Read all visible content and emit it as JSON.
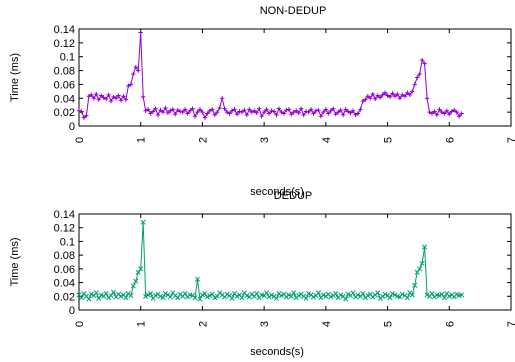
{
  "chart_data": [
    {
      "type": "line",
      "title": "NON-DEDUP",
      "xlabel": "seconds(s)",
      "ylabel": "Time (ms)",
      "xlim": [
        0,
        7
      ],
      "ylim": [
        0,
        0.14
      ],
      "xticks": [
        "0",
        "1",
        "2",
        "3",
        "4",
        "5",
        "6",
        "7"
      ],
      "yticks": [
        "0",
        "0.02",
        "0.04",
        "0.06",
        "0.08",
        "0.1",
        "0.12",
        "0.14"
      ],
      "grid": false,
      "color": "#9400d3",
      "marker": "plus",
      "series": [
        {
          "x": [
            0.0,
            0.04,
            0.08,
            0.12,
            0.16,
            0.2,
            0.24,
            0.28,
            0.32,
            0.36,
            0.4,
            0.44,
            0.48,
            0.52,
            0.56,
            0.6,
            0.64,
            0.68,
            0.72,
            0.76,
            0.8,
            0.84,
            0.88,
            0.92,
            0.96,
            1.0,
            1.04,
            1.08,
            1.12,
            1.16,
            1.2,
            1.24,
            1.28,
            1.32,
            1.36,
            1.4,
            1.44,
            1.48,
            1.52,
            1.56,
            1.6,
            1.64,
            1.68,
            1.72,
            1.76,
            1.8,
            1.84,
            1.88,
            1.92,
            1.96,
            2.0,
            2.04,
            2.08,
            2.12,
            2.16,
            2.2,
            2.24,
            2.28,
            2.32,
            2.36,
            2.4,
            2.44,
            2.48,
            2.52,
            2.56,
            2.6,
            2.64,
            2.68,
            2.72,
            2.76,
            2.8,
            2.84,
            2.88,
            2.92,
            2.96,
            3.0,
            3.04,
            3.08,
            3.12,
            3.16,
            3.2,
            3.24,
            3.28,
            3.32,
            3.36,
            3.4,
            3.44,
            3.48,
            3.52,
            3.56,
            3.6,
            3.64,
            3.68,
            3.72,
            3.76,
            3.8,
            3.84,
            3.88,
            3.92,
            3.96,
            4.0,
            4.04,
            4.08,
            4.12,
            4.16,
            4.2,
            4.24,
            4.28,
            4.32,
            4.36,
            4.4,
            4.44,
            4.48,
            4.52,
            4.56,
            4.6,
            4.64,
            4.68,
            4.72,
            4.76,
            4.8,
            4.84,
            4.88,
            4.92,
            4.96,
            5.0,
            5.04,
            5.08,
            5.12,
            5.16,
            5.2,
            5.24,
            5.28,
            5.32,
            5.36,
            5.4,
            5.44,
            5.48,
            5.52,
            5.56,
            5.6,
            5.64,
            5.68,
            5.72,
            5.76,
            5.8,
            5.84,
            5.88,
            5.92,
            5.96,
            6.0,
            6.04,
            6.08,
            6.12,
            6.16,
            6.2
          ],
          "y": [
            0.022,
            0.021,
            0.012,
            0.015,
            0.043,
            0.045,
            0.04,
            0.046,
            0.038,
            0.044,
            0.041,
            0.039,
            0.045,
            0.036,
            0.042,
            0.04,
            0.044,
            0.037,
            0.043,
            0.038,
            0.058,
            0.06,
            0.075,
            0.085,
            0.08,
            0.135,
            0.042,
            0.022,
            0.024,
            0.018,
            0.021,
            0.025,
            0.016,
            0.023,
            0.02,
            0.026,
            0.019,
            0.022,
            0.024,
            0.017,
            0.023,
            0.021,
            0.02,
            0.024,
            0.018,
            0.022,
            0.025,
            0.014,
            0.02,
            0.024,
            0.02,
            0.012,
            0.018,
            0.022,
            0.024,
            0.016,
            0.02,
            0.026,
            0.04,
            0.025,
            0.02,
            0.018,
            0.022,
            0.024,
            0.017,
            0.021,
            0.02,
            0.023,
            0.016,
            0.024,
            0.02,
            0.022,
            0.019,
            0.025,
            0.014,
            0.02,
            0.024,
            0.018,
            0.022,
            0.021,
            0.016,
            0.025,
            0.02,
            0.018,
            0.023,
            0.024,
            0.017,
            0.02,
            0.022,
            0.019,
            0.025,
            0.016,
            0.021,
            0.02,
            0.024,
            0.018,
            0.022,
            0.023,
            0.014,
            0.02,
            0.024,
            0.018,
            0.022,
            0.025,
            0.017,
            0.02,
            0.023,
            0.016,
            0.024,
            0.021,
            0.019,
            0.022,
            0.016,
            0.018,
            0.024,
            0.036,
            0.038,
            0.043,
            0.04,
            0.046,
            0.039,
            0.044,
            0.041,
            0.045,
            0.048,
            0.044,
            0.042,
            0.047,
            0.043,
            0.046,
            0.04,
            0.045,
            0.043,
            0.048,
            0.045,
            0.05,
            0.06,
            0.07,
            0.075,
            0.095,
            0.09,
            0.04,
            0.02,
            0.018,
            0.021,
            0.016,
            0.024,
            0.02,
            0.018,
            0.022,
            0.017,
            0.021,
            0.023,
            0.02,
            0.014,
            0.018
          ]
        }
      ]
    },
    {
      "type": "line",
      "title": "DEDUP",
      "xlabel": "seconds(s)",
      "ylabel": "Time (ms)",
      "xlim": [
        0,
        7
      ],
      "ylim": [
        0,
        0.14
      ],
      "xticks": [
        "0",
        "1",
        "2",
        "3",
        "4",
        "5",
        "6",
        "7"
      ],
      "yticks": [
        "0",
        "0.02",
        "0.04",
        "0.06",
        "0.08",
        "0.1",
        "0.12",
        "0.14"
      ],
      "grid": false,
      "color": "#009e73",
      "marker": "cross",
      "series": [
        {
          "x": [
            0.0,
            0.04,
            0.08,
            0.12,
            0.16,
            0.2,
            0.24,
            0.28,
            0.32,
            0.36,
            0.4,
            0.44,
            0.48,
            0.52,
            0.56,
            0.6,
            0.64,
            0.68,
            0.72,
            0.76,
            0.8,
            0.84,
            0.88,
            0.92,
            0.96,
            1.0,
            1.04,
            1.08,
            1.12,
            1.16,
            1.2,
            1.24,
            1.28,
            1.32,
            1.36,
            1.4,
            1.44,
            1.48,
            1.52,
            1.56,
            1.6,
            1.64,
            1.68,
            1.72,
            1.76,
            1.8,
            1.84,
            1.88,
            1.92,
            1.96,
            2.0,
            2.04,
            2.08,
            2.12,
            2.16,
            2.2,
            2.24,
            2.28,
            2.32,
            2.36,
            2.4,
            2.44,
            2.48,
            2.52,
            2.56,
            2.6,
            2.64,
            2.68,
            2.72,
            2.76,
            2.8,
            2.84,
            2.88,
            2.92,
            2.96,
            3.0,
            3.04,
            3.08,
            3.12,
            3.16,
            3.2,
            3.24,
            3.28,
            3.32,
            3.36,
            3.4,
            3.44,
            3.48,
            3.52,
            3.56,
            3.6,
            3.64,
            3.68,
            3.72,
            3.76,
            3.8,
            3.84,
            3.88,
            3.92,
            3.96,
            4.0,
            4.04,
            4.08,
            4.12,
            4.16,
            4.2,
            4.24,
            4.28,
            4.32,
            4.36,
            4.4,
            4.44,
            4.48,
            4.52,
            4.56,
            4.6,
            4.64,
            4.68,
            4.72,
            4.76,
            4.8,
            4.84,
            4.88,
            4.92,
            4.96,
            5.0,
            5.04,
            5.08,
            5.12,
            5.16,
            5.2,
            5.24,
            5.28,
            5.32,
            5.36,
            5.4,
            5.44,
            5.48,
            5.52,
            5.56,
            5.6,
            5.64,
            5.68,
            5.72,
            5.76,
            5.8,
            5.84,
            5.88,
            5.92,
            5.96,
            6.0,
            6.04,
            6.08,
            6.12,
            6.16,
            6.2
          ],
          "y": [
            0.022,
            0.018,
            0.024,
            0.02,
            0.016,
            0.023,
            0.021,
            0.025,
            0.017,
            0.022,
            0.02,
            0.024,
            0.018,
            0.021,
            0.026,
            0.019,
            0.023,
            0.02,
            0.022,
            0.018,
            0.024,
            0.021,
            0.035,
            0.042,
            0.055,
            0.06,
            0.128,
            0.02,
            0.022,
            0.024,
            0.017,
            0.021,
            0.023,
            0.02,
            0.018,
            0.024,
            0.022,
            0.019,
            0.025,
            0.021,
            0.018,
            0.023,
            0.02,
            0.024,
            0.019,
            0.022,
            0.021,
            0.018,
            0.045,
            0.016,
            0.022,
            0.024,
            0.019,
            0.021,
            0.023,
            0.018,
            0.02,
            0.025,
            0.022,
            0.019,
            0.023,
            0.021,
            0.017,
            0.024,
            0.02,
            0.022,
            0.018,
            0.025,
            0.021,
            0.019,
            0.023,
            0.02,
            0.024,
            0.018,
            0.022,
            0.021,
            0.025,
            0.019,
            0.022,
            0.02,
            0.017,
            0.024,
            0.021,
            0.023,
            0.019,
            0.022,
            0.02,
            0.025,
            0.018,
            0.021,
            0.023,
            0.02,
            0.017,
            0.024,
            0.022,
            0.019,
            0.021,
            0.025,
            0.018,
            0.022,
            0.02,
            0.023,
            0.019,
            0.021,
            0.024,
            0.018,
            0.022,
            0.02,
            0.016,
            0.023,
            0.021,
            0.025,
            0.019,
            0.022,
            0.02,
            0.024,
            0.018,
            0.021,
            0.023,
            0.019,
            0.022,
            0.025,
            0.017,
            0.02,
            0.023,
            0.021,
            0.018,
            0.024,
            0.022,
            0.02,
            0.019,
            0.023,
            0.021,
            0.018,
            0.025,
            0.022,
            0.036,
            0.055,
            0.06,
            0.068,
            0.092,
            0.022,
            0.02,
            0.024,
            0.019,
            0.022,
            0.021,
            0.023,
            0.018,
            0.024,
            0.02,
            0.022,
            0.019,
            0.023,
            0.021,
            0.022
          ]
        }
      ]
    }
  ]
}
